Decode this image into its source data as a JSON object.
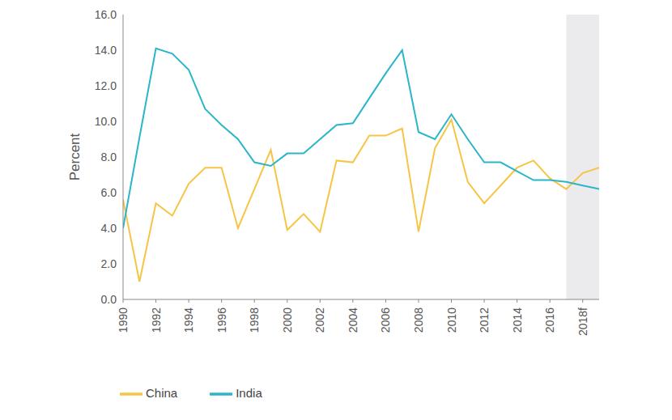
{
  "chart_data": {
    "type": "line",
    "y_label": "Percent",
    "x": [
      1990,
      1991,
      1992,
      1993,
      1994,
      1995,
      1996,
      1997,
      1998,
      1999,
      2000,
      2001,
      2002,
      2003,
      2004,
      2005,
      2006,
      2007,
      2008,
      2009,
      2010,
      2011,
      2012,
      2013,
      2014,
      2015,
      2016,
      2017,
      2018,
      2019
    ],
    "series": [
      {
        "name": "China",
        "color": "#f7c545",
        "values": [
          5.6,
          1.0,
          5.4,
          4.7,
          6.5,
          7.4,
          7.4,
          4.0,
          6.2,
          8.4,
          3.9,
          4.8,
          3.8,
          7.8,
          7.7,
          9.2,
          9.2,
          9.6,
          3.8,
          8.5,
          10.1,
          6.6,
          5.4,
          6.4,
          7.4,
          7.8,
          6.8,
          6.2,
          7.1,
          7.4
        ]
      },
      {
        "name": "India",
        "color": "#2ab6c9",
        "values": [
          4.0,
          9.1,
          14.1,
          13.8,
          12.9,
          10.7,
          9.8,
          9.0,
          7.7,
          7.5,
          8.2,
          8.2,
          9.0,
          9.8,
          9.9,
          11.3,
          12.7,
          14.0,
          9.4,
          9.0,
          10.4,
          9.0,
          7.7,
          7.7,
          7.2,
          6.7,
          6.7,
          6.6,
          6.4,
          6.2
        ]
      }
    ],
    "xlim": [
      1990,
      2019
    ],
    "xticks": [
      1990,
      1992,
      1994,
      1996,
      1998,
      2000,
      2002,
      2004,
      2006,
      2008,
      2010,
      2012,
      2014,
      2016,
      {
        "value": 2018,
        "label": "2018f"
      }
    ],
    "ylim": [
      0,
      16
    ],
    "yticks": [
      {
        "value": 0,
        "label": "0.0"
      },
      {
        "value": 2,
        "label": "2.0"
      },
      {
        "value": 4,
        "label": "4.0"
      },
      {
        "value": 6,
        "label": "6.0"
      },
      {
        "value": 8,
        "label": "8.0"
      },
      {
        "value": 10,
        "label": "10.0"
      },
      {
        "value": 12,
        "label": "12.0"
      },
      {
        "value": 14,
        "label": "14.0"
      },
      {
        "value": 16,
        "label": "16.0"
      }
    ],
    "forecast_range": [
      2017,
      2019
    ],
    "grid": false,
    "legend": "bottom left"
  }
}
